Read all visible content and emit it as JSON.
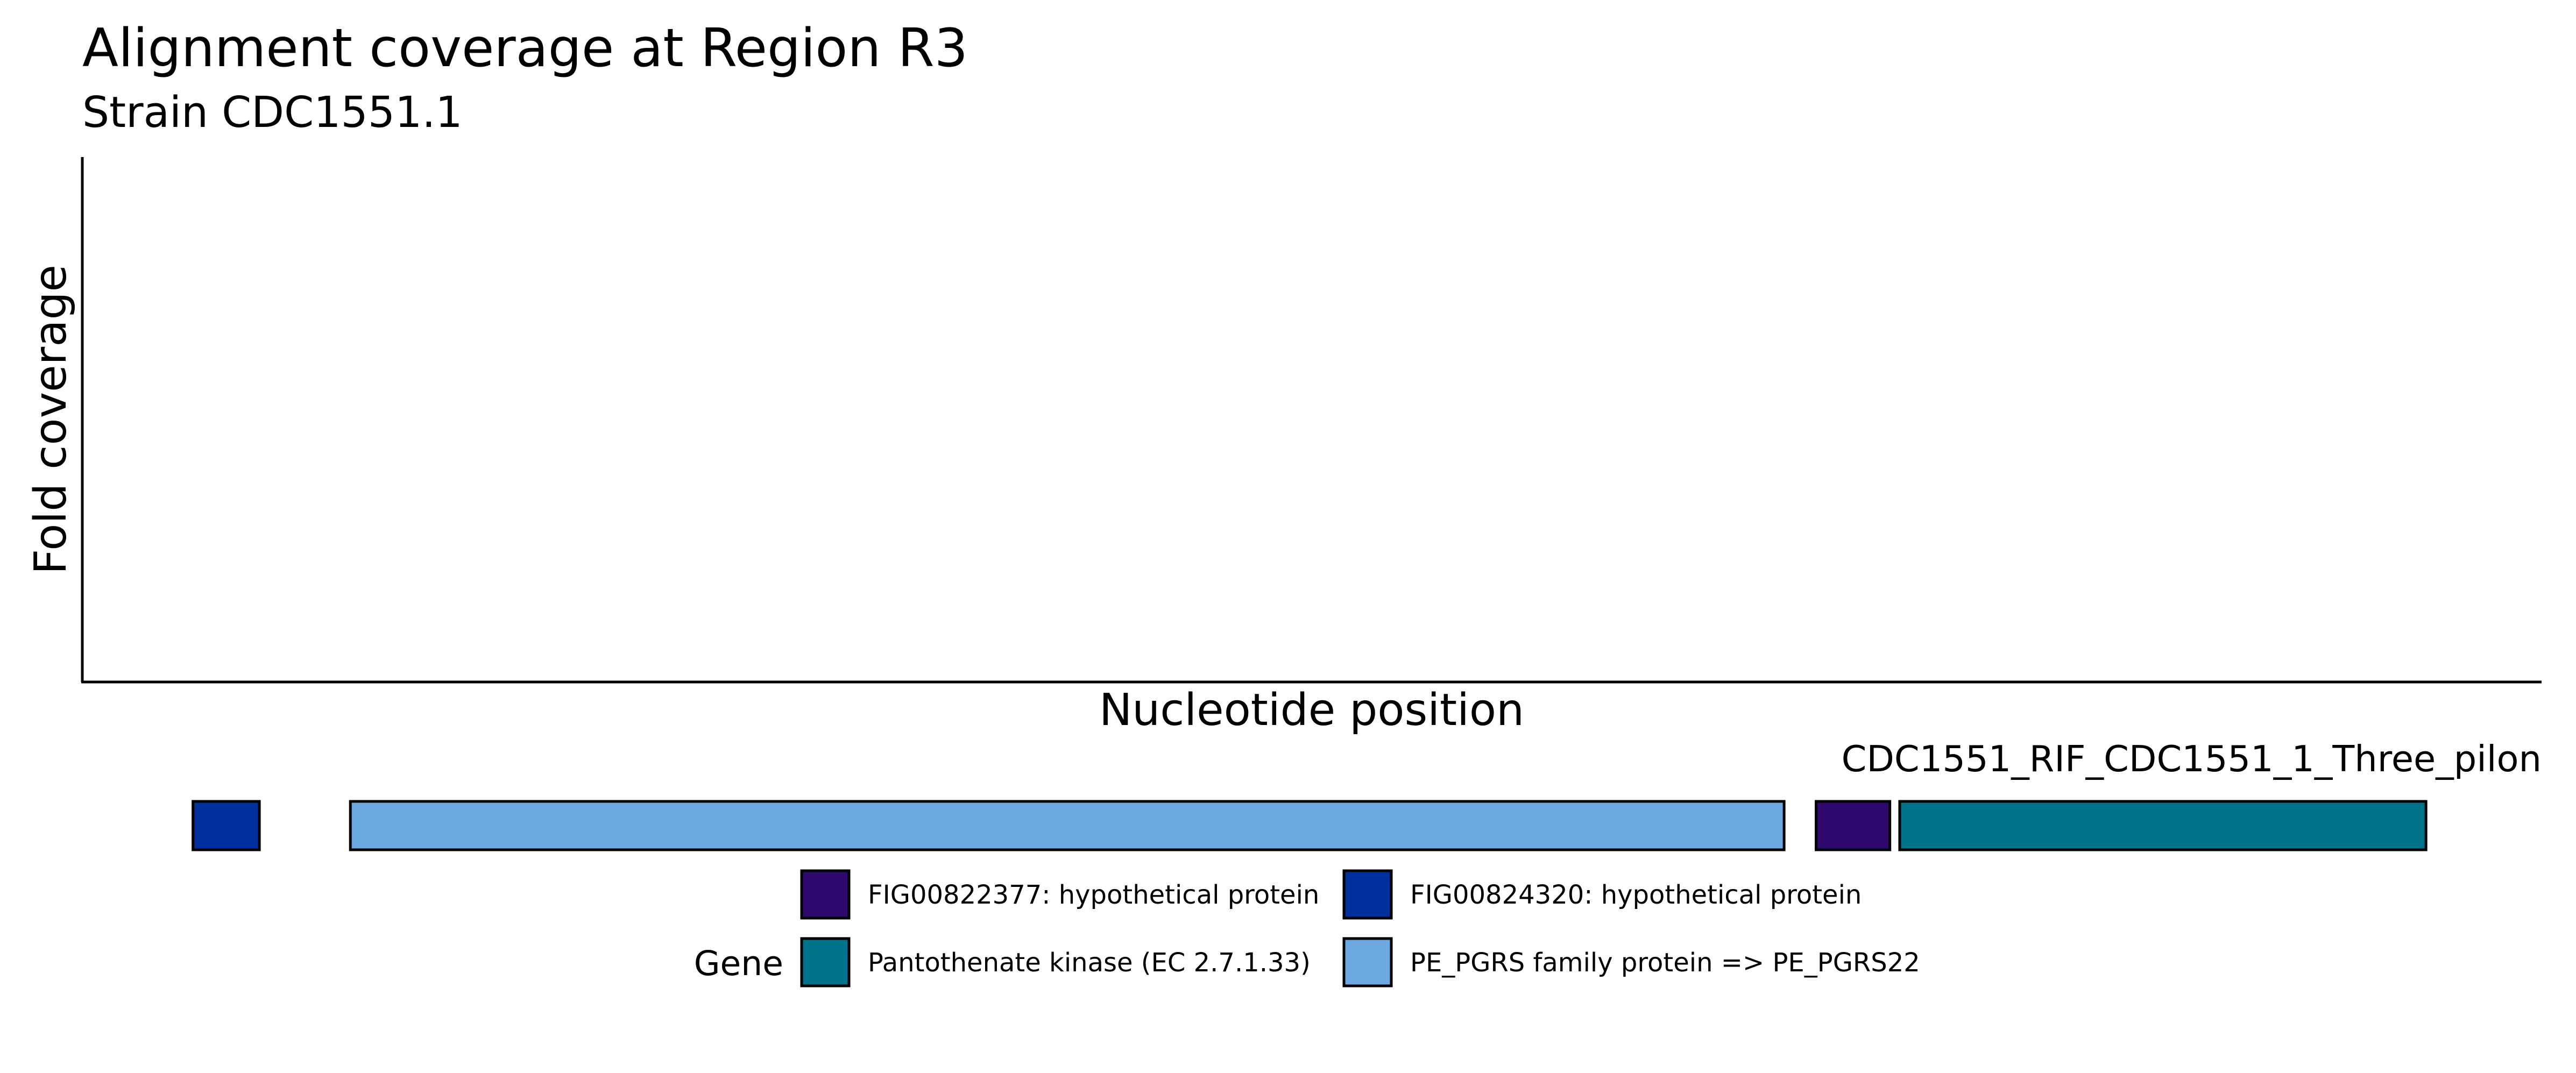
{
  "chart_data": {
    "type": "area",
    "title": "Alignment coverage at Region R3",
    "subtitle": "Strain CDC1551.1",
    "xlabel": "Nucleotide position",
    "ylabel": "Fold coverage",
    "x": [],
    "series": [],
    "grid": false,
    "track": {
      "label": "CDC1551_RIF_CDC1551_1_Three_pilon",
      "genes": [
        {
          "gene": "FIG00824320: hypothetical protein",
          "start": 0.045,
          "end": 0.072
        },
        {
          "gene": "PE_PGRS family protein => PE_PGRS22",
          "start": 0.109,
          "end": 0.692
        },
        {
          "gene": "FIG00822377: hypothetical protein",
          "start": 0.705,
          "end": 0.735
        },
        {
          "gene": "Pantothenate kinase (EC 2.7.1.33)",
          "start": 0.739,
          "end": 0.953
        }
      ]
    },
    "legend": {
      "title": "Gene",
      "placement": "bottom",
      "items": [
        {
          "label": "FIG00822377: hypothetical protein",
          "color": "#2E0A6E"
        },
        {
          "label": "FIG00824320: hypothetical protein",
          "color": "#00309E"
        },
        {
          "label": "Pantothenate kinase (EC 2.7.1.33)",
          "color": "#00738A"
        },
        {
          "label": "PE_PGRS family protein => PE_PGRS22",
          "color": "#6CA9E3"
        }
      ]
    }
  }
}
